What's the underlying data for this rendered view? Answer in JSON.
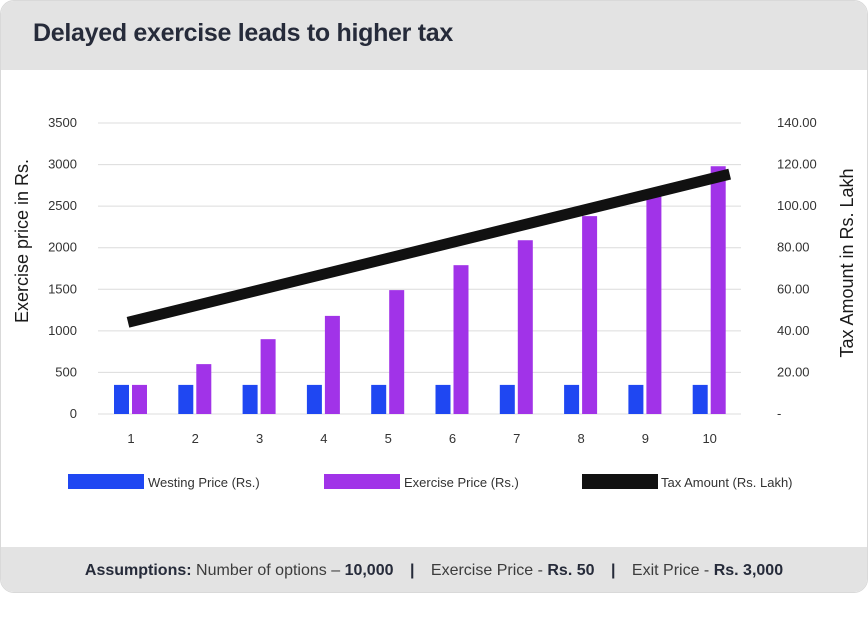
{
  "header": {
    "title": "Delayed exercise leads to higher tax"
  },
  "footer": {
    "assumptions_label": "Assumptions:",
    "options_text": "Number of options –",
    "options_value": "10,000",
    "separator": "|",
    "exercise_text": "Exercise Price -",
    "exercise_value": "Rs. 50",
    "exit_text": "Exit Price -",
    "exit_value": "Rs. 3,000"
  },
  "colors": {
    "vesting": "#1f47f2",
    "exercise": "#a133e8",
    "tax": "#111111",
    "grid": "#dcdcdc",
    "band": "#e3e3e3"
  },
  "chart_data": {
    "type": "bar",
    "title": "",
    "categories": [
      "1",
      "2",
      "3",
      "4",
      "5",
      "6",
      "7",
      "8",
      "9",
      "10"
    ],
    "series": [
      {
        "name": "Westing Price (Rs.)",
        "type": "bar",
        "axis": "left",
        "color": "#1f47f2",
        "values": [
          350,
          350,
          350,
          350,
          350,
          350,
          350,
          350,
          350,
          350
        ]
      },
      {
        "name": "Exercise Price (Rs.)",
        "type": "bar",
        "axis": "left",
        "color": "#a133e8",
        "values": [
          350,
          600,
          900,
          1180,
          1490,
          1790,
          2090,
          2380,
          2680,
          2980
        ]
      },
      {
        "name": "Tax Amount (Rs. Lakh)",
        "type": "line",
        "axis": "right",
        "color": "#111111",
        "values": [
          44.6,
          52.2,
          59.8,
          67.4,
          75.0,
          82.6,
          90.2,
          97.8,
          105.4,
          113.0
        ]
      }
    ],
    "ylabel_left": "Exercise price in Rs.",
    "ylabel_right": "Tax Amount in Rs. Lakh",
    "ylim_left": [
      0,
      3500
    ],
    "yticks_left": [
      "0",
      "500",
      "1000",
      "1500",
      "2000",
      "2500",
      "3000",
      "3500"
    ],
    "ylim_right": [
      0,
      140
    ],
    "yticks_right": [
      "-",
      "20.00",
      "40.00",
      "60.00",
      "80.00",
      "100.00",
      "120.00",
      "140.00"
    ],
    "grid": true,
    "legend_position": "bottom"
  }
}
